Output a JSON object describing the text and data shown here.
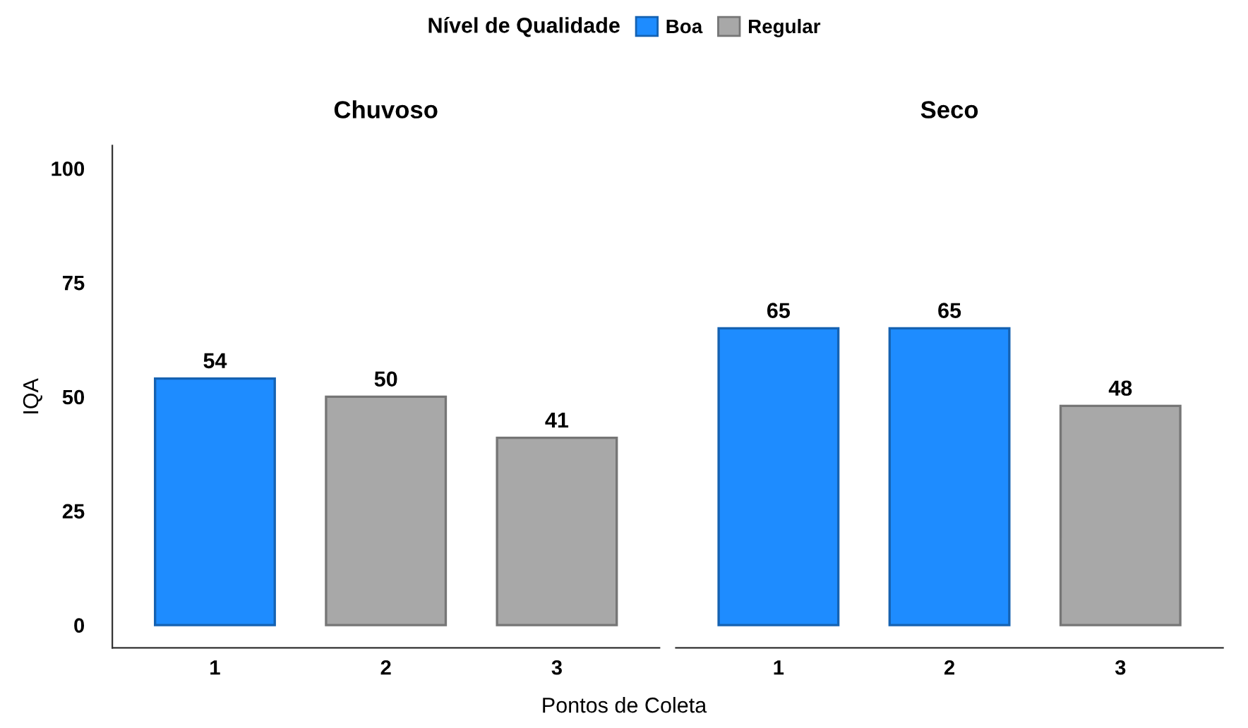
{
  "chart_data": [
    {
      "type": "bar",
      "title": "Chuvoso",
      "categories": [
        "1",
        "2",
        "3"
      ],
      "ylabel": "IQA",
      "xlabel": "Pontos de Coleta",
      "legend_title": "Nível de Qualidade",
      "legend": "top",
      "series": [
        {
          "name": "Boa",
          "color": "#1e8cff",
          "values": [
            54,
            null,
            null
          ]
        },
        {
          "name": "Regular",
          "color": "#a8a8a8",
          "values": [
            null,
            50,
            41
          ]
        }
      ],
      "ylim": [
        -5,
        105
      ],
      "yticks": [
        0,
        25,
        50,
        75,
        100
      ],
      "data_labels": true,
      "grid": false
    },
    {
      "type": "bar",
      "title": "Seco",
      "categories": [
        "1",
        "2",
        "3"
      ],
      "series": [
        {
          "color": "#1e8cff",
          "values": [
            65,
            65,
            null
          ]
        },
        {
          "color": "#a8a8a8",
          "values": [
            null,
            null,
            48
          ]
        }
      ],
      "data_labels": true,
      "grid": false,
      "tick_labels": "x"
    }
  ]
}
